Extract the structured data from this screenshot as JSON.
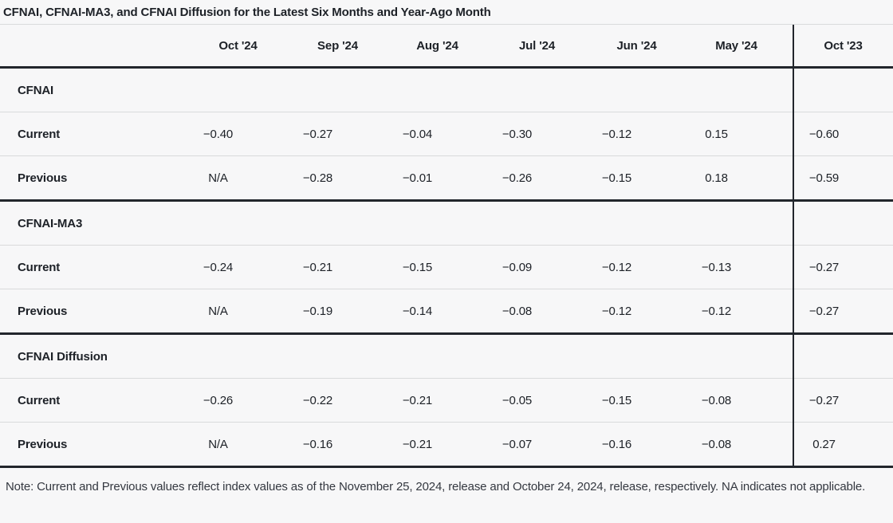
{
  "chart_data": {
    "type": "table",
    "title": "CFNAI, CFNAI-MA3, and CFNAI Diffusion for the Latest Six Months and Year-Ago Month",
    "columns": [
      "Oct '24",
      "Sep '24",
      "Aug '24",
      "Jul '24",
      "Jun '24",
      "May '24",
      "Oct '23"
    ],
    "sections": [
      {
        "name": "CFNAI",
        "rows": [
          {
            "label": "Current",
            "values": [
              "−0.40",
              "−0.27",
              "−0.04",
              "−0.30",
              "−0.12",
              "0.15",
              "−0.60"
            ]
          },
          {
            "label": "Previous",
            "values": [
              "N/A",
              "−0.28",
              "−0.01",
              "−0.26",
              "−0.15",
              "0.18",
              "−0.59"
            ]
          }
        ]
      },
      {
        "name": "CFNAI-MA3",
        "rows": [
          {
            "label": "Current",
            "values": [
              "−0.24",
              "−0.21",
              "−0.15",
              "−0.09",
              "−0.12",
              "−0.13",
              "−0.27"
            ]
          },
          {
            "label": "Previous",
            "values": [
              "N/A",
              "−0.19",
              "−0.14",
              "−0.08",
              "−0.12",
              "−0.12",
              "−0.27"
            ]
          }
        ]
      },
      {
        "name": "CFNAI Diffusion",
        "rows": [
          {
            "label": "Current",
            "values": [
              "−0.26",
              "−0.22",
              "−0.21",
              "−0.05",
              "−0.15",
              "−0.08",
              "−0.27"
            ]
          },
          {
            "label": "Previous",
            "values": [
              "N/A",
              "−0.16",
              "−0.21",
              "−0.07",
              "−0.16",
              "−0.08",
              "0.27"
            ]
          }
        ]
      }
    ],
    "note": "Note: Current and Previous values reflect index values as of the November 25, 2024, release and October 24, 2024, release, respectively. NA indicates not applicable.",
    "layout": {
      "year_ago_divider": true,
      "grid": "horizontal rules only"
    }
  },
  "colors": {
    "background": "#f7f7f8",
    "text": "#1d2127",
    "note_text": "#343840",
    "rule_dark": "#22262c",
    "rule_light": "#d9dadb"
  }
}
